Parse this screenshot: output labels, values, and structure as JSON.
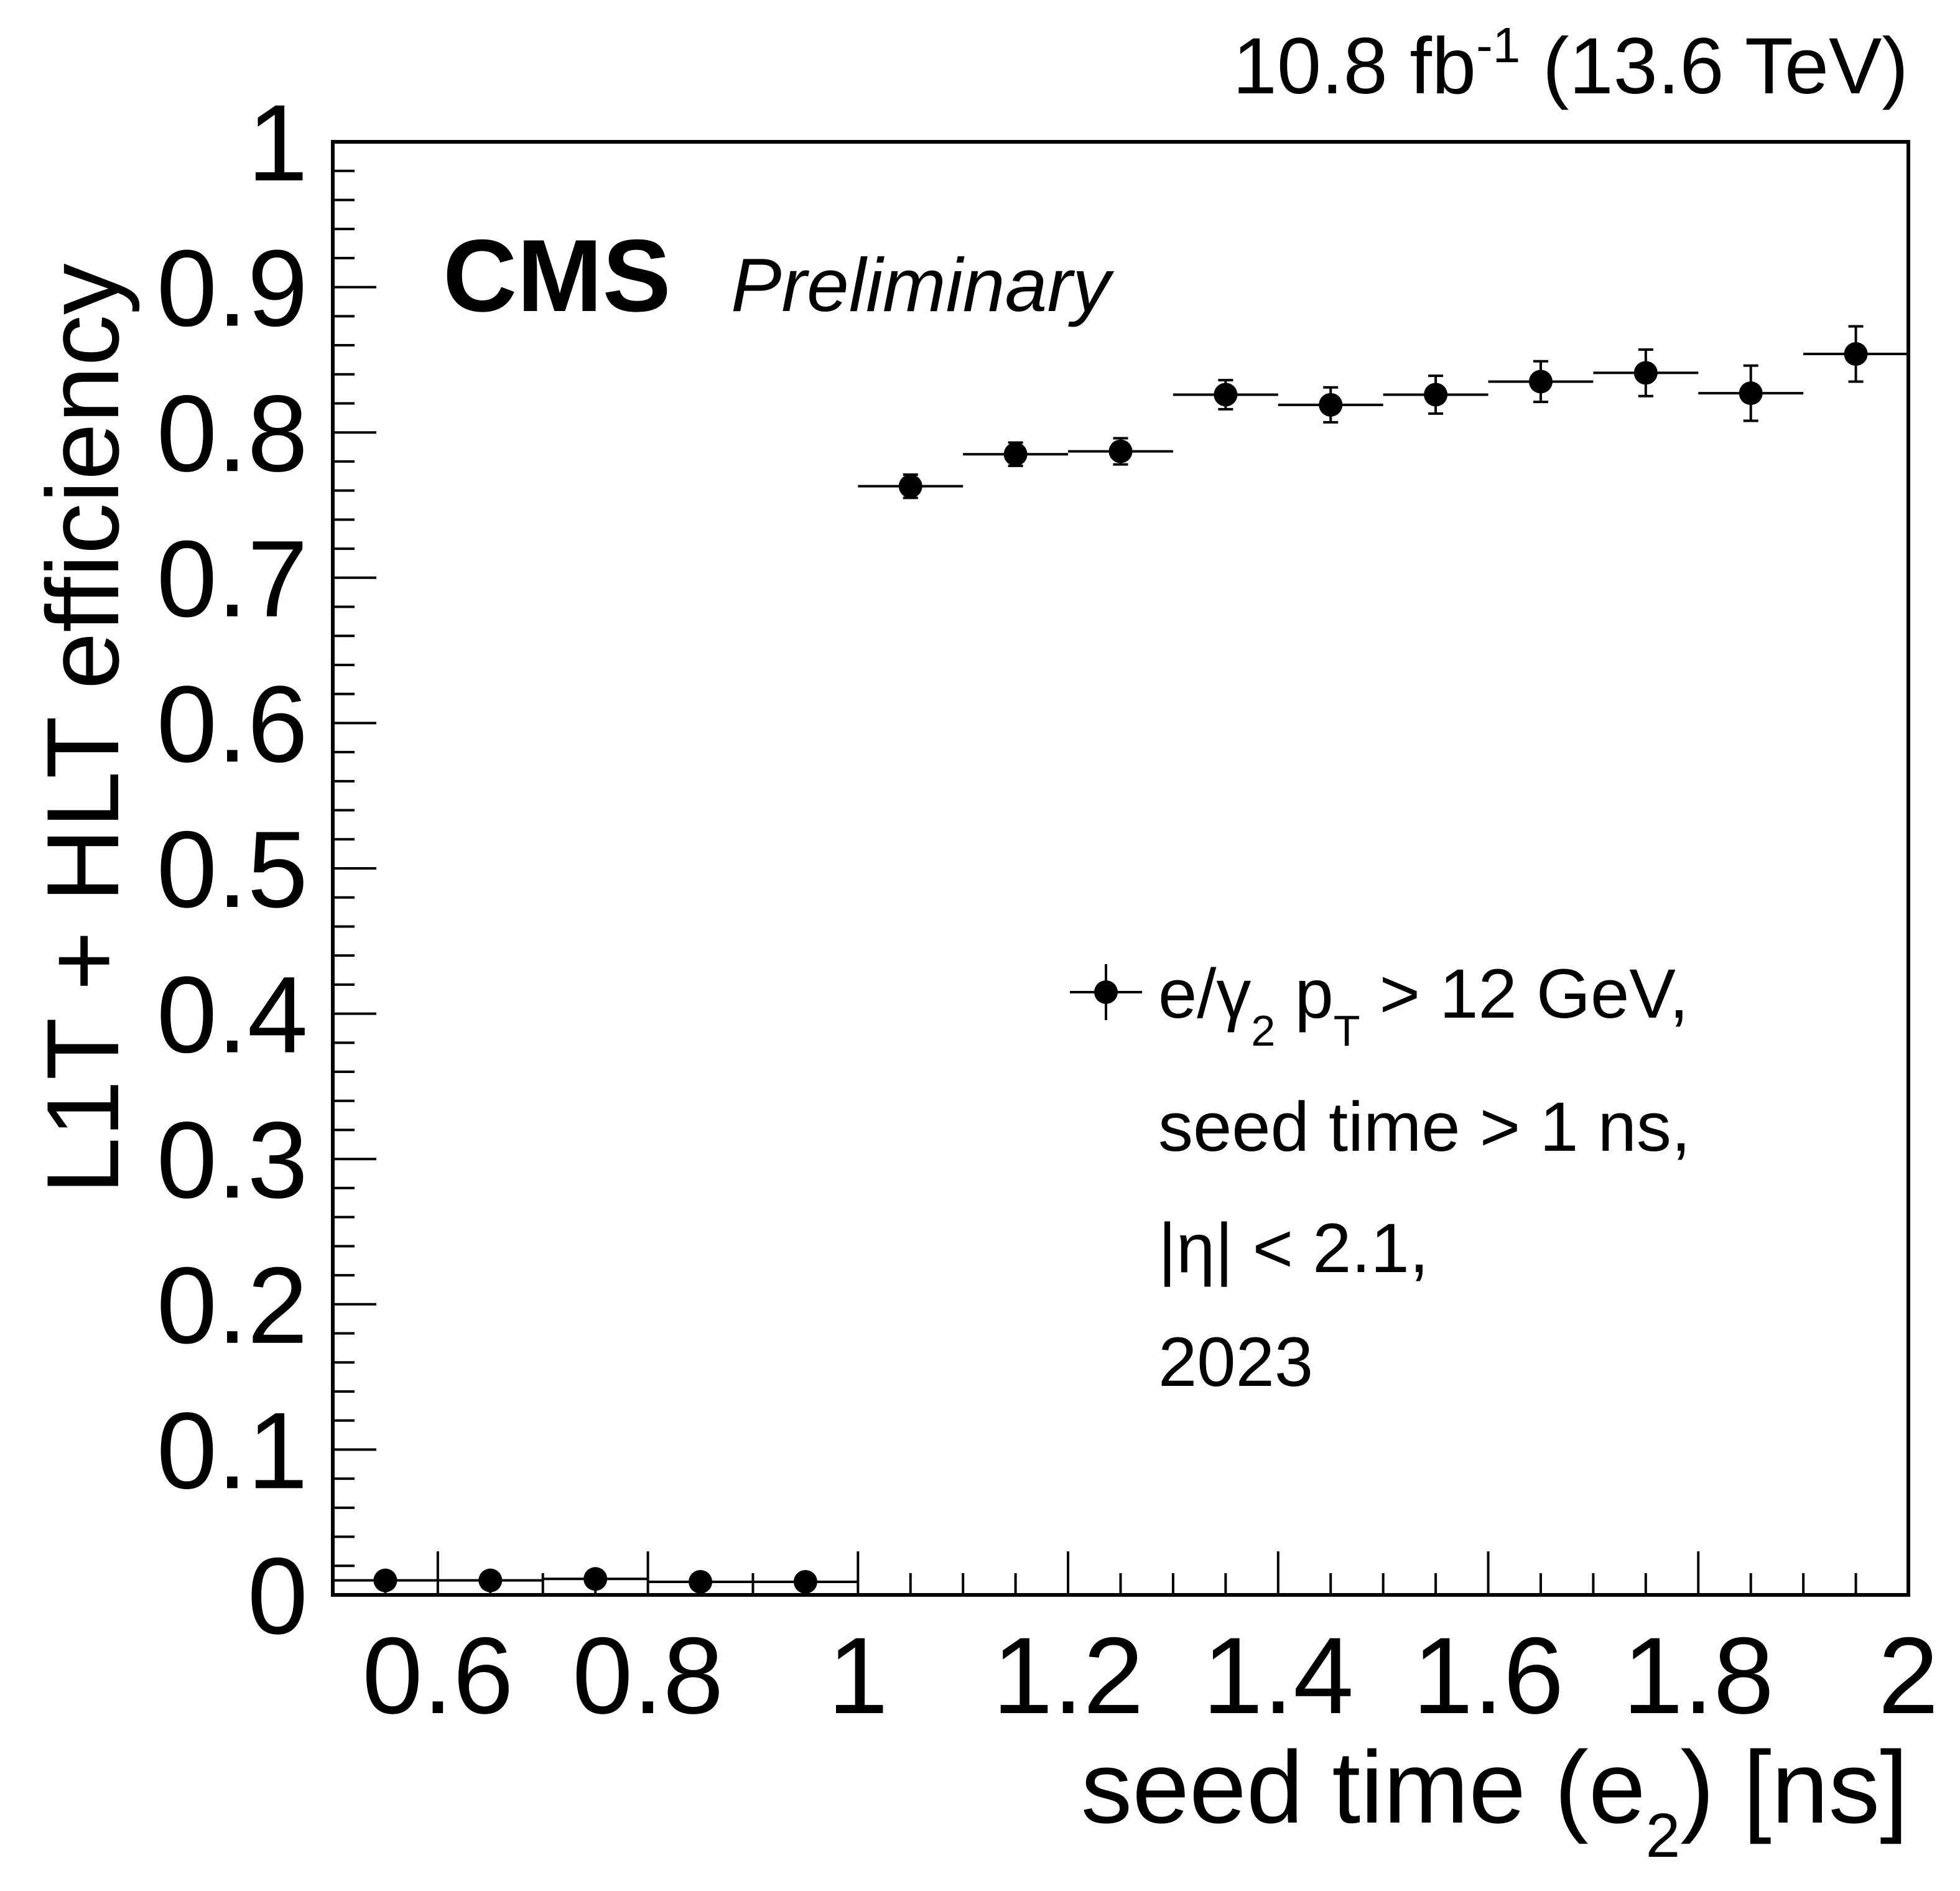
{
  "lumi": {
    "prefix": "10.8 fb",
    "exponent": "-1",
    "suffix": " (13.6 TeV)"
  },
  "cms": {
    "label": "CMS",
    "sublabel": "Preliminary"
  },
  "legend": {
    "line1_a": "e/",
    "line1_gamma": "γ",
    "line1_gamma_sub": "2",
    "line1_p": " p",
    "line1_p_sub": "T",
    "line1_rest": " > 12 GeV,",
    "line2": "seed time > 1 ns,",
    "line3": "|η| < 2.1,",
    "line4": "2023"
  },
  "chart_data": {
    "type": "scatter",
    "title": "",
    "xlabel_main": "seed time (e",
    "xlabel_sub": "2",
    "xlabel_end": ") [ns]",
    "ylabel": "L1T + HLT efficiency",
    "xlim": [
      0.5,
      2.0
    ],
    "ylim": [
      0,
      1
    ],
    "xticks": [
      0.6,
      0.8,
      1.0,
      1.2,
      1.4,
      1.6,
      1.8,
      2.0
    ],
    "xtick_labels": [
      "0.6",
      "0.8",
      "1",
      "1.2",
      "1.4",
      "1.6",
      "1.8",
      "2"
    ],
    "yticks": [
      0,
      0.1,
      0.2,
      0.3,
      0.4,
      0.5,
      0.6,
      0.7,
      0.8,
      0.9,
      1.0
    ],
    "ytick_labels": [
      "0",
      "0.1",
      "0.2",
      "0.3",
      "0.4",
      "0.5",
      "0.6",
      "0.7",
      "0.8",
      "0.9",
      "1"
    ],
    "series": [
      {
        "name": "e/γ2 pT > 12 GeV, seed time > 1 ns, |η| < 2.1, 2023",
        "color": "#000000",
        "points": [
          {
            "x": 0.55,
            "xerr": 0.05,
            "y": 0.01,
            "yerr": 0.0
          },
          {
            "x": 0.65,
            "xerr": 0.05,
            "y": 0.01,
            "yerr": 0.0
          },
          {
            "x": 0.75,
            "xerr": 0.05,
            "y": 0.011,
            "yerr": 0.0
          },
          {
            "x": 0.85,
            "xerr": 0.05,
            "y": 0.009,
            "yerr": 0.0
          },
          {
            "x": 0.95,
            "xerr": 0.05,
            "y": 0.009,
            "yerr": 0.0
          },
          {
            "x": 1.05,
            "xerr": 0.05,
            "y": 0.763,
            "yerr": 0.008
          },
          {
            "x": 1.15,
            "xerr": 0.05,
            "y": 0.785,
            "yerr": 0.008
          },
          {
            "x": 1.25,
            "xerr": 0.05,
            "y": 0.787,
            "yerr": 0.009
          },
          {
            "x": 1.35,
            "xerr": 0.05,
            "y": 0.826,
            "yerr": 0.01
          },
          {
            "x": 1.45,
            "xerr": 0.05,
            "y": 0.819,
            "yerr": 0.012
          },
          {
            "x": 1.55,
            "xerr": 0.05,
            "y": 0.826,
            "yerr": 0.013
          },
          {
            "x": 1.65,
            "xerr": 0.05,
            "y": 0.835,
            "yerr": 0.014
          },
          {
            "x": 1.75,
            "xerr": 0.05,
            "y": 0.841,
            "yerr": 0.016
          },
          {
            "x": 1.85,
            "xerr": 0.05,
            "y": 0.827,
            "yerr": 0.019
          },
          {
            "x": 1.95,
            "xerr": 0.05,
            "y": 0.854,
            "yerr": 0.019
          }
        ]
      }
    ]
  }
}
